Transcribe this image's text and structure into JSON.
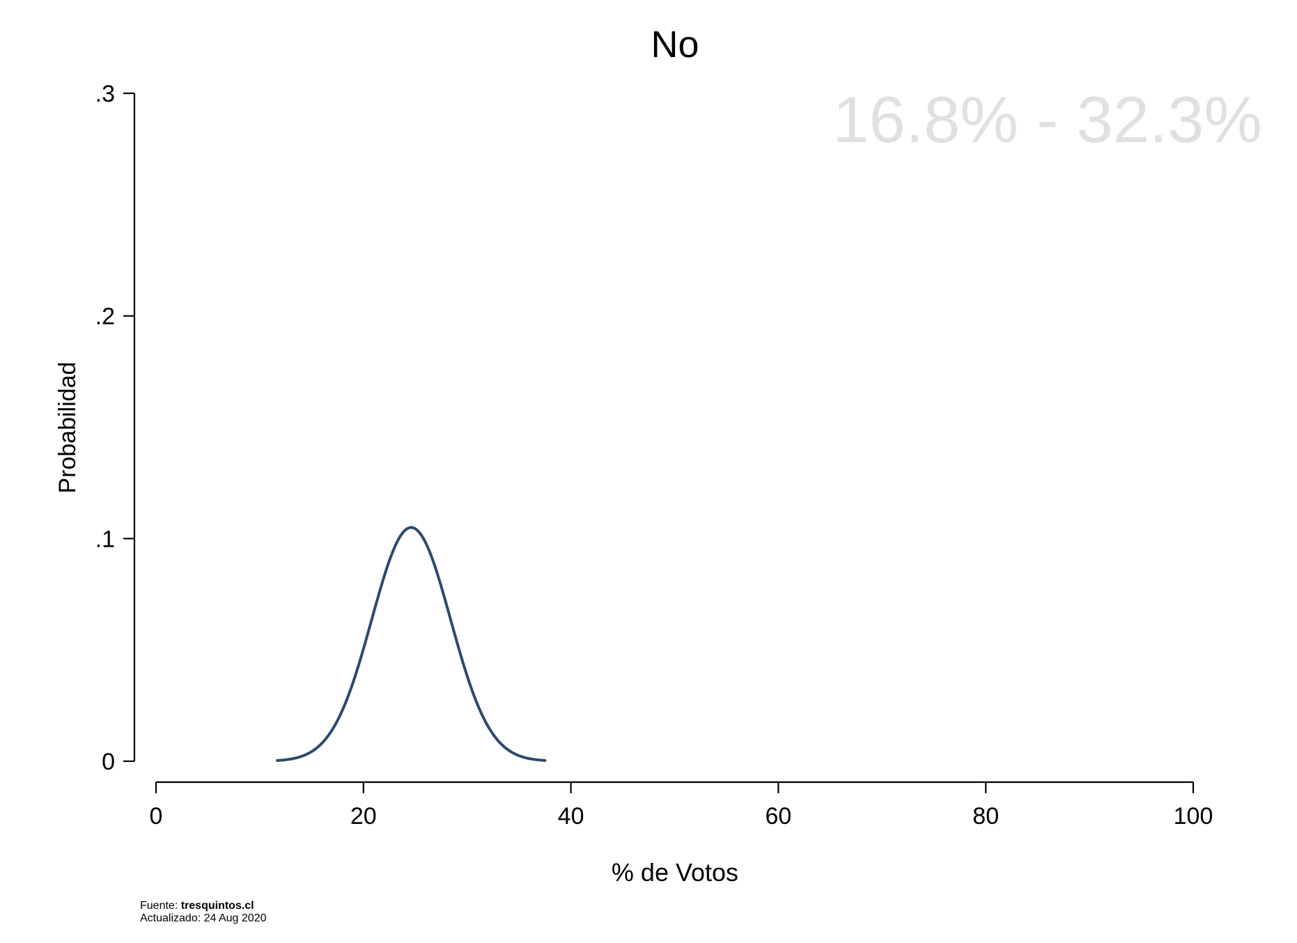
{
  "chart_data": {
    "type": "line",
    "title": "No",
    "xlabel": "% de Votos",
    "ylabel": "Probabilidad",
    "xlim": [
      0,
      100
    ],
    "ylim": [
      0,
      0.3
    ],
    "x_ticks": [
      0,
      20,
      40,
      60,
      80,
      100
    ],
    "x_tick_labels": [
      "0",
      "20",
      "40",
      "60",
      "80",
      "100"
    ],
    "y_ticks": [
      0,
      0.1,
      0.2,
      0.3
    ],
    "y_tick_labels": [
      "0",
      ".1",
      ".2",
      ".3"
    ],
    "grid": false,
    "annotation": "16.8% - 32.3%",
    "series": [
      {
        "name": "No",
        "color": "#2c4a6e",
        "distribution": "normal",
        "mean": 24.6,
        "sd": 3.8,
        "x_start": 11.7,
        "x_end": 37.5,
        "peak_value": 0.105
      }
    ]
  },
  "footer": {
    "source_label": "Fuente:",
    "source_value": "tresquintos.cl",
    "updated_label": "Actualizado:",
    "updated_value": "24 Aug 2020"
  },
  "colors": {
    "line": "#2c4a6e",
    "annotation": "#e0e0e0",
    "axis": "#000000"
  }
}
